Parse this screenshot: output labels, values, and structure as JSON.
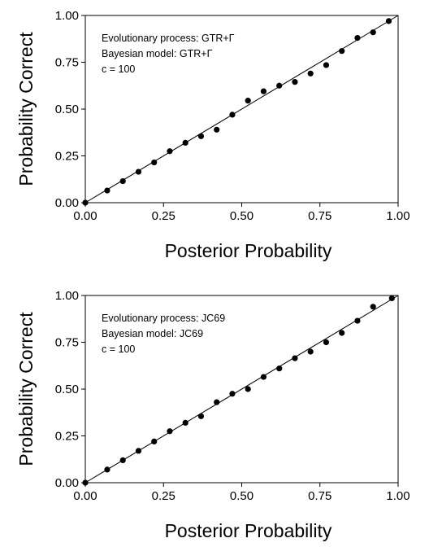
{
  "chart_data": [
    {
      "type": "scatter",
      "title": "",
      "xlabel": "Posterior Probability",
      "ylabel": "Probability Correct",
      "xlim": [
        0,
        1
      ],
      "ylim": [
        0,
        1
      ],
      "xticks": [
        "0.00",
        "0.25",
        "0.50",
        "0.75",
        "1.00"
      ],
      "yticks": [
        "0.00",
        "0.25",
        "0.50",
        "0.75",
        "1.00"
      ],
      "grid": false,
      "reference_line": "y = x",
      "annotations": [
        "Evolutionary process: GTR+Γ",
        "Bayesian model: GTR+Γ",
        "c = 100"
      ],
      "series": [
        {
          "x": [
            0.0,
            0.07,
            0.12,
            0.17,
            0.22,
            0.27,
            0.32,
            0.37,
            0.42,
            0.47,
            0.52,
            0.57,
            0.62,
            0.67,
            0.72,
            0.77,
            0.82,
            0.87,
            0.92,
            0.97
          ],
          "y": [
            0.0,
            0.065,
            0.115,
            0.165,
            0.215,
            0.275,
            0.32,
            0.355,
            0.39,
            0.47,
            0.545,
            0.595,
            0.625,
            0.645,
            0.69,
            0.735,
            0.81,
            0.88,
            0.91,
            0.97
          ]
        }
      ]
    },
    {
      "type": "scatter",
      "title": "",
      "xlabel": "Posterior Probability",
      "ylabel": "Probability Correct",
      "xlim": [
        0,
        1
      ],
      "ylim": [
        0,
        1
      ],
      "xticks": [
        "0.00",
        "0.25",
        "0.50",
        "0.75",
        "1.00"
      ],
      "yticks": [
        "0.00",
        "0.25",
        "0.50",
        "0.75",
        "1.00"
      ],
      "grid": false,
      "reference_line": "y = x",
      "annotations": [
        "Evolutionary process: JC69",
        "Bayesian model: JC69",
        "c = 100"
      ],
      "series": [
        {
          "x": [
            0.0,
            0.07,
            0.12,
            0.17,
            0.22,
            0.27,
            0.32,
            0.37,
            0.42,
            0.47,
            0.52,
            0.57,
            0.62,
            0.67,
            0.72,
            0.77,
            0.82,
            0.87,
            0.92,
            0.98
          ],
          "y": [
            0.0,
            0.07,
            0.12,
            0.17,
            0.22,
            0.275,
            0.32,
            0.355,
            0.43,
            0.475,
            0.5,
            0.565,
            0.61,
            0.665,
            0.7,
            0.75,
            0.8,
            0.865,
            0.94,
            0.985
          ]
        }
      ]
    }
  ]
}
